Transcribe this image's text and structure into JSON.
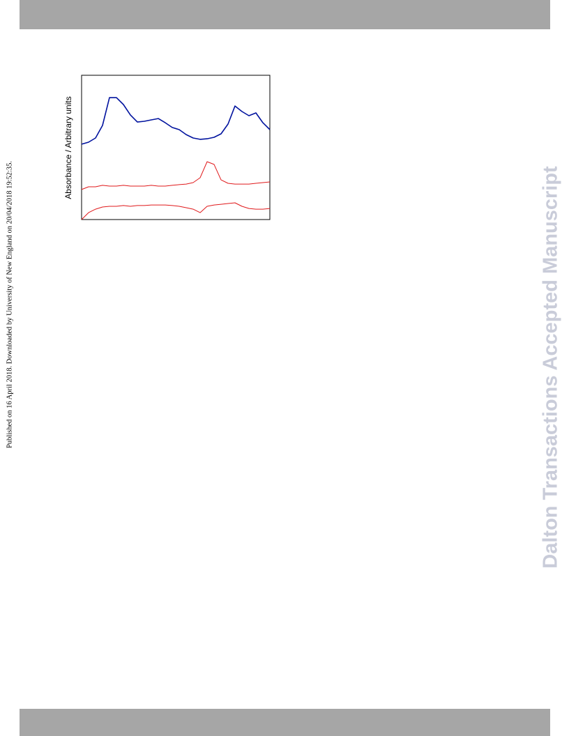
{
  "side_note": "Published on 16 April 2018. Downloaded by University of New England on 20/04/2018 19:52:35.",
  "watermark": "Dalton Transactions Accepted Manuscript",
  "chart_data": {
    "type": "line",
    "y_label": "Absorbance / Arbitrary units",
    "ylim": [
      0,
      100
    ],
    "series": [
      {
        "color": "#00129e",
        "values": [
          52.2,
          53.6,
          56.5,
          65.2,
          84.5,
          84.5,
          79.7,
          72.5,
          67.6,
          68.1,
          69.1,
          70.0,
          67.1,
          63.8,
          62.3,
          58.9,
          56.5,
          55.6,
          56.0,
          57.0,
          59.4,
          66.2,
          78.7,
          74.9,
          72.0,
          73.9,
          67.1,
          62.3
        ]
      },
      {
        "color": "#e0191b",
        "values": [
          20.8,
          22.7,
          22.7,
          23.7,
          23.2,
          23.2,
          23.7,
          23.2,
          23.2,
          23.2,
          23.7,
          23.2,
          23.2,
          23.7,
          24.2,
          24.6,
          25.6,
          29.0,
          40.1,
          38.2,
          27.5,
          25.1,
          24.6,
          24.6,
          24.6,
          25.1,
          25.6,
          26.1
        ]
      },
      {
        "color": "#e0191b",
        "values": [
          0,
          4.8,
          7.2,
          8.7,
          9.2,
          9.2,
          9.7,
          9.2,
          9.7,
          9.7,
          10.1,
          10.1,
          10.1,
          9.7,
          9.2,
          8.2,
          7.2,
          4.8,
          9.2,
          10.1,
          10.6,
          11.1,
          11.6,
          9.2,
          7.7,
          7.2,
          7.2,
          7.7
        ]
      }
    ]
  }
}
